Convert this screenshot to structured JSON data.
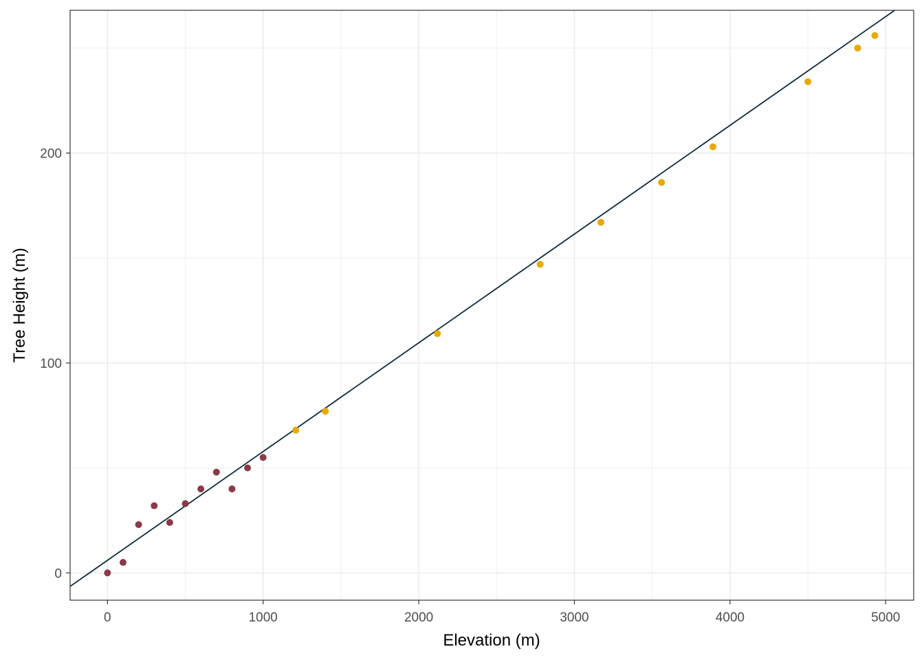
{
  "chart_data": {
    "type": "scatter",
    "xlabel": "Elevation (m)",
    "ylabel": "Tree Height (m)",
    "xlim": [
      -240,
      5180
    ],
    "ylim": [
      -13,
      268
    ],
    "x_ticks": [
      0,
      1000,
      2000,
      3000,
      4000,
      5000
    ],
    "x_tick_labels": [
      "0",
      "1000",
      "2000",
      "3000",
      "4000",
      "5000"
    ],
    "y_ticks": [
      0,
      100,
      200
    ],
    "y_tick_labels": [
      "0",
      "100",
      "200"
    ],
    "x_minor_ticks": [
      500,
      1500,
      2500,
      3500,
      4500
    ],
    "y_minor_ticks": [
      50,
      150,
      250
    ],
    "grid": true,
    "colors": {
      "group_a": "#8b3a48",
      "group_b": "#e8a900",
      "fit_line": "#0b2a3a",
      "grid": "#ebebeb",
      "panel_border": "#333333"
    },
    "series": [
      {
        "color": "#8b3a48",
        "points": [
          [
            0,
            0
          ],
          [
            100,
            5
          ],
          [
            200,
            23
          ],
          [
            300,
            32
          ],
          [
            400,
            24
          ],
          [
            500,
            33
          ],
          [
            600,
            40
          ],
          [
            700,
            48
          ],
          [
            800,
            40
          ],
          [
            900,
            50
          ],
          [
            1000,
            55
          ]
        ]
      },
      {
        "color": "#e8a900",
        "points": [
          [
            1210,
            68
          ],
          [
            1400,
            77
          ],
          [
            2120,
            114
          ],
          [
            2780,
            147
          ],
          [
            3170,
            167
          ],
          [
            3560,
            186
          ],
          [
            3890,
            203
          ],
          [
            4500,
            234
          ],
          [
            4820,
            250
          ],
          [
            4930,
            256
          ]
        ]
      }
    ],
    "fit_line": {
      "intercept": 6,
      "slope": 0.0518,
      "color": "#0b2a3a"
    }
  }
}
